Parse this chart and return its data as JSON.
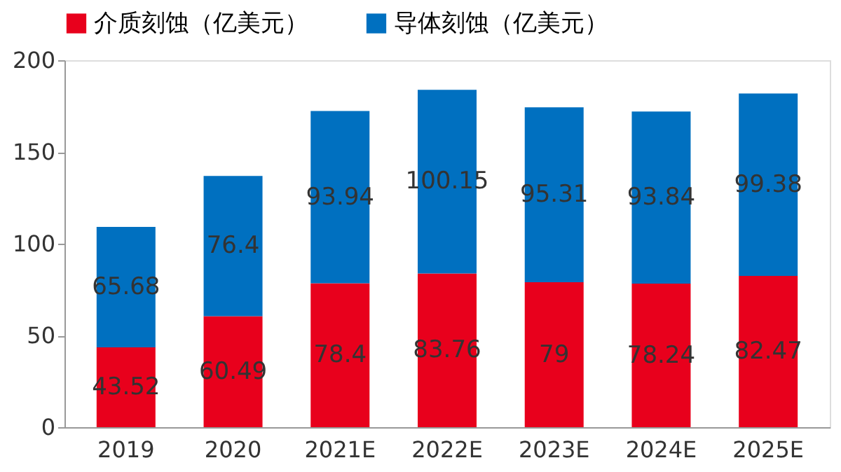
{
  "chart_data": {
    "type": "bar",
    "stacked": true,
    "categories": [
      "2019",
      "2020",
      "2021E",
      "2022E",
      "2023E",
      "2024E",
      "2025E"
    ],
    "series": [
      {
        "name": "介质刻蚀（亿美元）",
        "color": "#e8001c",
        "values": [
          43.52,
          60.49,
          78.4,
          83.76,
          79,
          78.24,
          82.47
        ]
      },
      {
        "name": "导体刻蚀（亿美元）",
        "color": "#0070c0",
        "values": [
          65.68,
          76.4,
          93.94,
          100.15,
          95.31,
          93.84,
          99.38
        ]
      }
    ],
    "ylim": [
      0,
      200
    ],
    "yticks": [
      0,
      50,
      100,
      150,
      200
    ],
    "grid": false,
    "legend": "top",
    "data_labels": true
  }
}
